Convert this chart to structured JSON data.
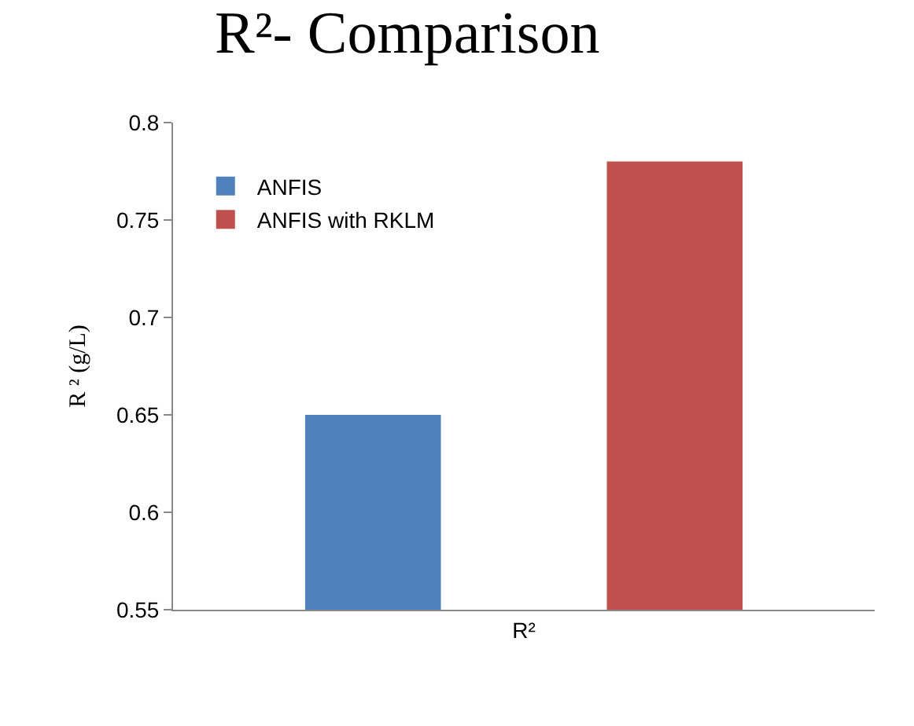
{
  "chart_data": {
    "type": "bar",
    "title": "R²- Comparison",
    "ylabel": "R ² (g/L)",
    "categories": [
      "R²"
    ],
    "series": [
      {
        "name": "ANFIS",
        "color": "#4f81bd",
        "values": [
          0.65
        ]
      },
      {
        "name": "ANFIS with RKLM",
        "color": "#c0504d",
        "values": [
          0.78
        ]
      }
    ],
    "ylim": [
      0.55,
      0.8
    ],
    "yticks": [
      0.55,
      0.6,
      0.65,
      0.7,
      0.75,
      0.8
    ],
    "grid": false,
    "legend": "top left"
  }
}
